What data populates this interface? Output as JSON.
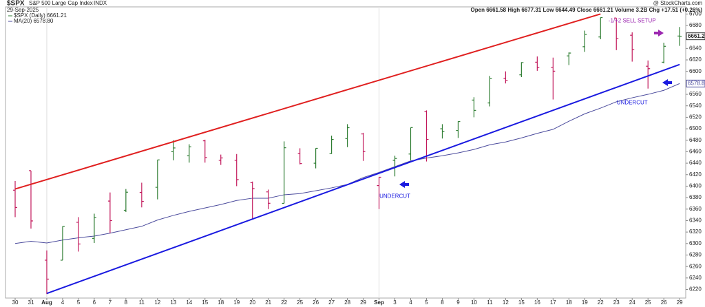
{
  "chart_data": {
    "type": "ohlc",
    "title": "$SPX",
    "subtitle": "S&P 500 Large Cap Index",
    "exchange": "INDX",
    "date": "29-Sep-2025",
    "credit": "@ StockCharts.com",
    "quote": "Open 6661.58  High 6677.31  Low 6644.49  Close 6661.21  Volume 3.2B  Chg +17.51 (+0.26%)",
    "categories": [
      "30",
      "31",
      "Aug",
      "4",
      "5",
      "6",
      "7",
      "8",
      "11",
      "12",
      "13",
      "14",
      "15",
      "18",
      "19",
      "20",
      "21",
      "22",
      "25",
      "26",
      "27",
      "28",
      "29",
      "Sep",
      "3",
      "4",
      "5",
      "8",
      "9",
      "10",
      "11",
      "12",
      "15",
      "16",
      "17",
      "18",
      "19",
      "22",
      "23",
      "24",
      "25",
      "26",
      "29"
    ],
    "series": [
      {
        "name": "$SPX (Daily) 6661.21",
        "up_color": "#2e7d32",
        "down_color": "#c2185b",
        "open": [
          6393,
          6427,
          6271,
          6271,
          6337,
          6309,
          6374,
          6358,
          6389,
          6398,
          6460,
          6453,
          6479,
          6445,
          6445,
          6406,
          6390,
          6370,
          6457,
          6440,
          6457,
          6483,
          6491,
          6401,
          6445,
          6456,
          6530,
          6500,
          6497,
          6550,
          6545,
          6588,
          6594,
          6616,
          6607,
          6627,
          6643,
          6660,
          6693,
          6663,
          6609,
          6616,
          6661.58
        ],
        "high": [
          6409,
          6427,
          6288,
          6330,
          6346,
          6352,
          6389,
          6395,
          6406,
          6446,
          6480,
          6473,
          6481,
          6455,
          6456,
          6408,
          6394,
          6478,
          6466,
          6466,
          6488,
          6508,
          6493,
          6416,
          6453,
          6502,
          6532,
          6508,
          6513,
          6555,
          6592,
          6600,
          6616,
          6626,
          6624,
          6633,
          6671,
          6694,
          6693,
          6668,
          6619,
          6650,
          6677.31
        ],
        "low": [
          6346,
          6326,
          6212,
          6271,
          6286,
          6301,
          6318,
          6355,
          6363,
          6377,
          6445,
          6441,
          6441,
          6437,
          6400,
          6343,
          6360,
          6370,
          6438,
          6431,
          6456,
          6468,
          6444,
          6360,
          6417,
          6445,
          6443,
          6483,
          6484,
          6520,
          6539,
          6579,
          6590,
          6601,
          6551,
          6611,
          6634,
          6656,
          6637,
          6617,
          6570,
          6614,
          6644.49
        ],
        "close": [
          6362.9,
          6339.39,
          6238.01,
          6329.94,
          6299.19,
          6345.06,
          6340,
          6389.45,
          6373.45,
          6445.76,
          6466.58,
          6468.54,
          6449.8,
          6449.15,
          6411.37,
          6395.78,
          6370.17,
          6466.91,
          6439.32,
          6465.94,
          6481.4,
          6501.86,
          6460.26,
          6415.54,
          6448.26,
          6502.08,
          6481.5,
          6495.15,
          6512.61,
          6532.04,
          6587.47,
          6584.29,
          6615.28,
          6606.76,
          6600.35,
          6631.96,
          6664.36,
          6693.75,
          6656.92,
          6637.97,
          6604.72,
          6643.7,
          6661.21
        ]
      },
      {
        "name": "MA(20) 6578.80",
        "color": "#4a4a9c",
        "values": [
          6300,
          6304,
          6301,
          6306,
          6310,
          6313,
          6318,
          6324,
          6330,
          6341,
          6349,
          6356,
          6362,
          6368,
          6375,
          6379,
          6379,
          6385,
          6387,
          6392,
          6397,
          6403,
          6415,
          6424,
          6434,
          6444,
          6449,
          6453,
          6458,
          6464,
          6472,
          6477,
          6484,
          6492,
          6499,
          6513,
          6526,
          6536,
          6547,
          6554,
          6560,
          6567,
          6578.8
        ]
      }
    ],
    "last_label": "6661.21",
    "ma_label": "6578.80",
    "trendlines": [
      {
        "color": "#e02020",
        "points": [
          [
            0,
            6395
          ],
          [
            37,
            6700
          ]
        ]
      },
      {
        "color": "#1a1ae0",
        "points": [
          [
            2,
            6213
          ],
          [
            42,
            6612
          ]
        ]
      }
    ],
    "annotations": [
      {
        "text": "UNDERCUT",
        "x": 24,
        "y": 6382,
        "color": "#1a1ae0"
      },
      {
        "text": "UNDERCUT",
        "x": 39,
        "y": 6545,
        "color": "#1a1ae0"
      },
      {
        "text": "-1/+2 SELL SETUP",
        "x": 39,
        "y": 6688,
        "color": "#9c27b0"
      }
    ],
    "ylim": [
      6205,
      6710
    ],
    "yticks": [
      6220,
      6240,
      6260,
      6280,
      6300,
      6320,
      6340,
      6360,
      6380,
      6400,
      6420,
      6440,
      6460,
      6480,
      6500,
      6520,
      6540,
      6560,
      6580,
      6600,
      6620,
      6640,
      6660,
      6680,
      6700
    ],
    "month_lines": true
  }
}
